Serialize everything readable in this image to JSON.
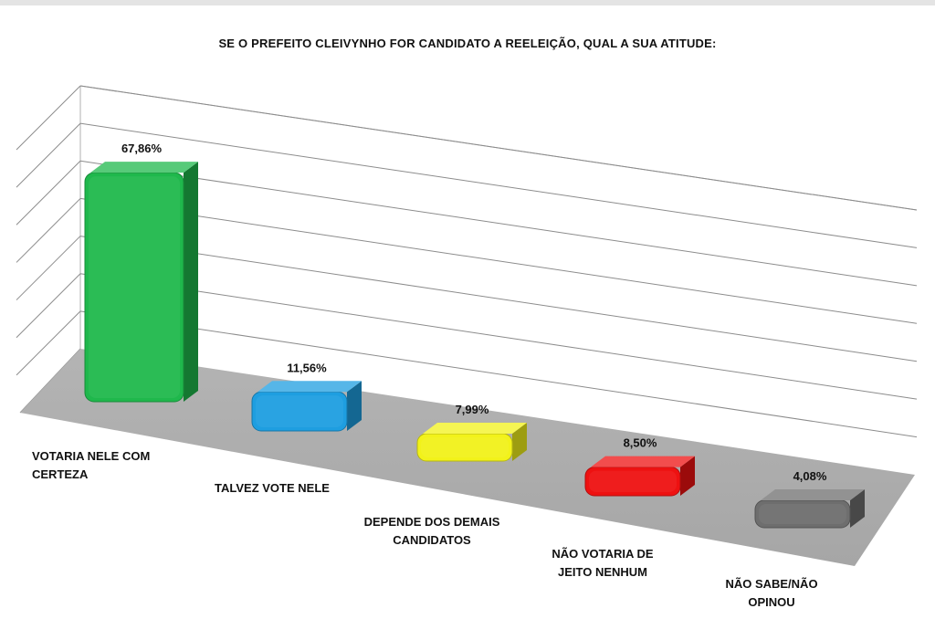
{
  "chart_data": {
    "type": "bar",
    "title": "SE O PREFEITO CLEIVYNHO FOR CANDIDATO A REELEIÇÃO, QUAL A SUA ATITUDE:",
    "categories": [
      "VOTARIA NELE COM CERTEZA",
      "TALVEZ VOTE NELE",
      "DEPENDE DOS DEMAIS CANDIDATOS",
      "NÃO VOTARIA DE JEITO NENHUM",
      "NÃO SABE/NÃO OPINOU"
    ],
    "values": [
      67.86,
      11.56,
      7.99,
      8.5,
      4.08
    ],
    "value_labels": [
      "67,86%",
      "11,56%",
      "7,99%",
      "8,50%",
      "4,08%"
    ],
    "colors": [
      "#1fb84c",
      "#1e9ee0",
      "#f2f21a",
      "#ee1111",
      "#6e6e6e"
    ],
    "xlabel": "",
    "ylabel": "",
    "ylim": [
      0,
      80
    ],
    "grid": true,
    "legend": "none",
    "style": "3d"
  }
}
